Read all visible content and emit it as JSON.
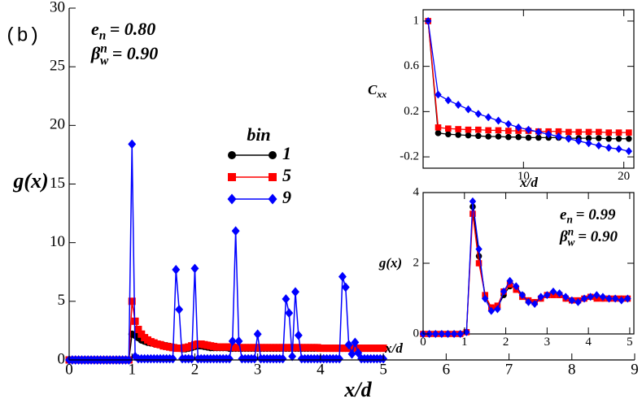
{
  "chart_data": [
    {
      "type": "line",
      "panel_label": "(b)",
      "xlabel": "x/d",
      "ylabel": "g(x)",
      "annotations": [
        {
          "symbol": "e",
          "sub": "n",
          "text": "= 0.80"
        },
        {
          "symbol": "β",
          "sup": "n",
          "sub": "w",
          "text": "= 0.90"
        }
      ],
      "legend_title": "bin",
      "xlim": [
        0,
        9
      ],
      "xticks": [
        0,
        1,
        2,
        3,
        4,
        5,
        6,
        7,
        8,
        9
      ],
      "ylim": [
        0,
        30
      ],
      "yticks": [
        0,
        5,
        10,
        15,
        20,
        25,
        30
      ],
      "x": [
        0,
        0.05,
        0.1,
        0.15,
        0.2,
        0.25,
        0.3,
        0.35,
        0.4,
        0.45,
        0.5,
        0.55,
        0.6,
        0.65,
        0.7,
        0.75,
        0.8,
        0.85,
        0.9,
        0.95,
        1,
        1.05,
        1.1,
        1.15,
        1.2,
        1.25,
        1.3,
        1.35,
        1.4,
        1.45,
        1.5,
        1.55,
        1.6,
        1.65,
        1.7,
        1.75,
        1.8,
        1.85,
        1.9,
        1.95,
        2,
        2.05,
        2.1,
        2.15,
        2.2,
        2.25,
        2.3,
        2.35,
        2.4,
        2.45,
        2.5,
        2.55,
        2.6,
        2.65,
        2.7,
        2.75,
        2.8,
        2.85,
        2.9,
        2.95,
        3,
        3.05,
        3.1,
        3.15,
        3.2,
        3.25,
        3.3,
        3.35,
        3.4,
        3.45,
        3.5,
        3.55,
        3.6,
        3.65,
        3.7,
        3.75,
        3.8,
        3.85,
        3.9,
        3.95,
        4,
        4.05,
        4.1,
        4.15,
        4.2,
        4.25,
        4.3,
        4.35,
        4.4,
        4.45,
        4.5,
        4.55,
        4.6,
        4.65,
        4.7,
        4.75,
        4.8,
        4.85,
        4.9,
        4.95,
        5
      ],
      "series": [
        {
          "name": "1",
          "color": "#000000",
          "marker": "circle",
          "values": [
            0,
            0,
            0,
            0,
            0,
            0,
            0,
            0,
            0,
            0,
            0,
            0,
            0,
            0,
            0,
            0,
            0,
            0,
            0,
            0,
            2.2,
            2.1,
            1.9,
            1.7,
            1.6,
            1.5,
            1.45,
            1.4,
            1.35,
            1.3,
            1.25,
            1.2,
            1.15,
            1.1,
            1.05,
            1,
            0.95,
            0.95,
            1,
            1.05,
            1.15,
            1.2,
            1.2,
            1.15,
            1.1,
            1.05,
            1.05,
            1.05,
            1.05,
            1.05,
            1.05,
            1,
            1,
            1,
            1,
            1,
            1,
            1,
            1,
            1,
            1,
            1,
            1,
            1,
            1,
            1,
            1,
            1,
            1,
            1,
            1,
            1,
            1,
            1,
            1,
            1,
            1,
            1,
            1,
            1,
            1,
            1,
            1,
            1,
            1,
            1,
            1,
            1,
            1,
            1,
            1,
            1,
            1,
            1,
            1,
            1,
            1,
            1,
            1,
            1,
            1
          ]
        },
        {
          "name": "5",
          "color": "#ff0000",
          "marker": "square",
          "values": [
            0,
            0,
            0,
            0,
            0,
            0,
            0,
            0,
            0,
            0,
            0,
            0,
            0,
            0,
            0,
            0,
            0,
            0,
            0,
            0,
            5,
            3.3,
            2.6,
            2.2,
            1.9,
            1.7,
            1.55,
            1.45,
            1.35,
            1.3,
            1.2,
            1.15,
            1.1,
            1.05,
            1,
            1,
            1,
            1.05,
            1.1,
            1.2,
            1.3,
            1.35,
            1.35,
            1.3,
            1.25,
            1.2,
            1.15,
            1.1,
            1.1,
            1.1,
            1.1,
            1.1,
            1.1,
            1.05,
            1.05,
            1.05,
            1.05,
            1.05,
            1.05,
            1.05,
            1.05,
            1.05,
            1.05,
            1.05,
            1.05,
            1.05,
            1.05,
            1.05,
            1.05,
            1.05,
            1.05,
            1.05,
            1.05,
            1.05,
            1.05,
            1.05,
            1.05,
            1.05,
            1.05,
            1.05,
            1,
            1,
            1,
            1,
            1,
            1,
            1,
            1,
            1,
            1,
            1,
            1,
            1,
            1,
            1,
            1,
            1,
            1,
            1,
            1,
            1
          ]
        },
        {
          "name": "9",
          "color": "#0000ff",
          "marker": "diamond",
          "values": [
            0,
            0,
            0,
            0,
            0,
            0,
            0,
            0,
            0,
            0,
            0,
            0,
            0,
            0,
            0,
            0,
            0,
            0,
            0,
            0,
            18.4,
            0.3,
            0.1,
            0.1,
            0.1,
            0.1,
            0.1,
            0.1,
            0.1,
            0.1,
            0.1,
            0.1,
            0.1,
            0.1,
            7.7,
            4.3,
            0.1,
            0.1,
            0.1,
            0.1,
            7.8,
            0.1,
            0.1,
            0.1,
            0.1,
            0.1,
            0.1,
            0.1,
            0.1,
            0.1,
            0.1,
            0.1,
            1.6,
            11,
            1.6,
            0.1,
            0.1,
            0.1,
            0.1,
            0.1,
            2.2,
            0.1,
            0.1,
            0.1,
            0.1,
            0.1,
            0.1,
            0.1,
            0.1,
            5.2,
            4,
            0.3,
            5.8,
            2.1,
            0.1,
            0.1,
            0.1,
            0.1,
            0.1,
            0.1,
            0.1,
            0.1,
            0.1,
            0.1,
            0.1,
            0.1,
            0.1,
            7.1,
            6.2,
            1.3,
            0.5,
            1.5,
            0.6,
            0.1,
            0.1,
            0.1,
            0.1,
            0.1,
            0.1,
            0.1,
            0.1
          ]
        }
      ]
    },
    {
      "type": "line",
      "xlabel": "x/d",
      "ylabel": {
        "symbol": "C",
        "sub": "xx"
      },
      "xlim": [
        0,
        21
      ],
      "xticks": [
        10,
        20
      ],
      "ylim": [
        -0.3,
        1.1
      ],
      "yticks": [
        -0.2,
        0.2,
        0.6,
        1
      ],
      "x": [
        0.5,
        1.5,
        2.5,
        3.5,
        4.5,
        5.5,
        6.5,
        7.5,
        8.5,
        9.5,
        10.5,
        11.5,
        12.5,
        13.5,
        14.5,
        15.5,
        16.5,
        17.5,
        18.5,
        19.5,
        20.5
      ],
      "series": [
        {
          "color": "#000000",
          "marker": "circle",
          "values": [
            1,
            0.01,
            0,
            -0.005,
            -0.01,
            -0.015,
            -0.02,
            -0.02,
            -0.025,
            -0.025,
            -0.03,
            -0.03,
            -0.03,
            -0.03,
            -0.035,
            -0.035,
            -0.035,
            -0.035,
            -0.04,
            -0.04,
            -0.04
          ]
        },
        {
          "color": "#ff0000",
          "marker": "square",
          "values": [
            1,
            0.06,
            0.05,
            0.045,
            0.04,
            0.04,
            0.035,
            0.035,
            0.03,
            0.03,
            0.03,
            0.025,
            0.025,
            0.025,
            0.02,
            0.02,
            0.02,
            0.02,
            0.015,
            0.015,
            0.015
          ]
        },
        {
          "color": "#0000ff",
          "marker": "diamond",
          "values": [
            1,
            0.35,
            0.3,
            0.26,
            0.22,
            0.18,
            0.15,
            0.12,
            0.09,
            0.06,
            0.04,
            0.02,
            0,
            -0.02,
            -0.04,
            -0.06,
            -0.08,
            -0.1,
            -0.12,
            -0.13,
            -0.15
          ]
        }
      ]
    },
    {
      "type": "line",
      "xlabel": "x/d",
      "ylabel": "g(x)",
      "annotations": [
        {
          "symbol": "e",
          "sub": "n",
          "text": "= 0.99"
        },
        {
          "symbol": "β",
          "sup": "n",
          "sub": "w",
          "text": "= 0.90"
        }
      ],
      "xlim": [
        0,
        5.1
      ],
      "xticks": [
        0,
        1,
        2,
        3,
        4,
        5
      ],
      "ylim": [
        0,
        4
      ],
      "yticks": [
        0,
        2,
        4
      ],
      "x": [
        0,
        0.15,
        0.3,
        0.45,
        0.6,
        0.75,
        0.9,
        1.05,
        1.2,
        1.35,
        1.5,
        1.65,
        1.8,
        1.95,
        2.1,
        2.25,
        2.4,
        2.55,
        2.7,
        2.85,
        3,
        3.15,
        3.3,
        3.45,
        3.6,
        3.75,
        3.9,
        4.05,
        4.2,
        4.35,
        4.5,
        4.65,
        4.8,
        4.95
      ],
      "series": [
        {
          "color": "#000000",
          "marker": "circle",
          "values": [
            0,
            0,
            0,
            0,
            0,
            0,
            0,
            0.05,
            3.6,
            2.2,
            1.1,
            0.7,
            0.75,
            1.1,
            1.35,
            1.3,
            1.1,
            0.95,
            0.9,
            1,
            1.1,
            1.15,
            1.1,
            1,
            0.95,
            0.95,
            1,
            1.05,
            1.05,
            1,
            1,
            1,
            1,
            1
          ]
        },
        {
          "color": "#ff0000",
          "marker": "square",
          "values": [
            0,
            0,
            0,
            0,
            0,
            0,
            0,
            0.05,
            3.4,
            2,
            1.1,
            0.75,
            0.8,
            1.2,
            1.4,
            1.25,
            1.05,
            0.95,
            0.9,
            1,
            1.1,
            1.1,
            1.1,
            1,
            0.95,
            0.95,
            1,
            1.05,
            1,
            1,
            1,
            1,
            1,
            1
          ]
        },
        {
          "color": "#0000ff",
          "marker": "diamond",
          "values": [
            0,
            0,
            0,
            0,
            0,
            0,
            0,
            0.05,
            3.75,
            2.4,
            1,
            0.65,
            0.7,
            1.2,
            1.5,
            1.35,
            1.1,
            0.9,
            0.85,
            1.05,
            1.1,
            1.2,
            1.15,
            1.05,
            0.95,
            0.9,
            1,
            1.05,
            1.1,
            1.05,
            1,
            1,
            0.95,
            1
          ]
        }
      ]
    }
  ]
}
